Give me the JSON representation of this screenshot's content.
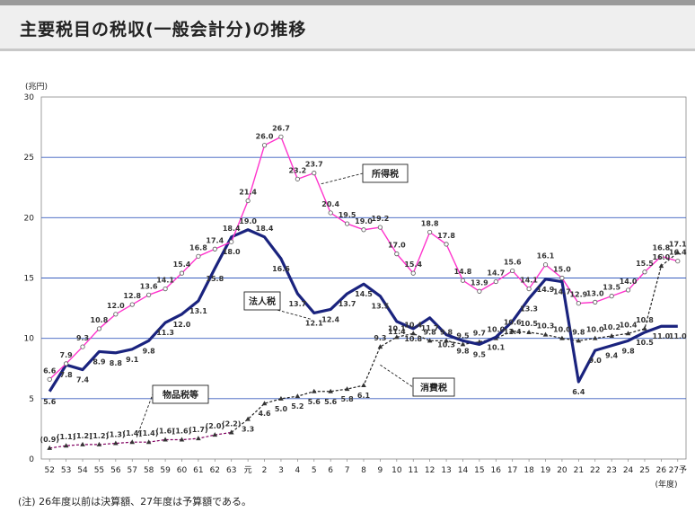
{
  "header": {
    "title": "主要税目の税収(一般会計分)の推移"
  },
  "note": "(注) 26年度以前は決算額、27年度は予算額である。",
  "chart_data": {
    "type": "line",
    "ylabel": "(兆円)",
    "xlabel": "(年度)",
    "ylim": [
      0,
      30
    ],
    "yticks": [
      0,
      5,
      10,
      15,
      20,
      25,
      30
    ],
    "grid": true,
    "categories": [
      "52",
      "53",
      "54",
      "55",
      "56",
      "57",
      "58",
      "59",
      "60",
      "61",
      "62",
      "63",
      "元",
      "2",
      "3",
      "4",
      "5",
      "6",
      "7",
      "8",
      "9",
      "10",
      "11",
      "12",
      "13",
      "14",
      "15",
      "16",
      "17",
      "18",
      "19",
      "20",
      "21",
      "22",
      "23",
      "24",
      "25",
      "26",
      "27予"
    ],
    "series": [
      {
        "name": "所得税",
        "color": "#ff33cc",
        "marker": "circle",
        "values": [
          6.6,
          7.9,
          9.3,
          10.8,
          12.0,
          12.8,
          13.6,
          14.1,
          15.4,
          16.8,
          17.4,
          18.0,
          21.4,
          26.0,
          26.7,
          23.2,
          23.7,
          20.4,
          19.5,
          19.0,
          19.2,
          17.0,
          15.4,
          18.8,
          17.8,
          14.8,
          13.9,
          14.7,
          15.6,
          14.1,
          16.1,
          15.0,
          12.9,
          13.0,
          13.5,
          14.0,
          15.5,
          16.8,
          16.4
        ],
        "labels": [
          "6.6",
          "7.9",
          "9.3",
          "10.8",
          "12.0",
          "12.8",
          "13.6",
          "14.1",
          "15.4",
          "16.8",
          "17.4",
          "18.0",
          "21.4",
          "26.0",
          "26.7",
          "23.2",
          "23.7",
          "20.4",
          "19.5",
          "19.0",
          "19.2",
          "17.0",
          "15.4",
          "18.8",
          "17.8",
          "14.8",
          "13.9",
          "14.7",
          "15.6",
          "14.1",
          "16.1",
          "15.0",
          "12.9",
          "13.0",
          "13.5",
          "14.0",
          "15.5",
          "16.8",
          "16.4"
        ]
      },
      {
        "name": "法人税",
        "color": "#1a237e",
        "marker": "none",
        "values": [
          5.6,
          7.8,
          7.4,
          8.9,
          8.8,
          9.1,
          9.8,
          11.3,
          12.0,
          13.1,
          15.8,
          18.4,
          19.0,
          18.4,
          16.6,
          13.7,
          12.1,
          12.4,
          13.7,
          14.5,
          13.5,
          11.4,
          10.8,
          11.7,
          10.3,
          9.8,
          9.5,
          10.1,
          11.4,
          13.3,
          14.9,
          14.7,
          6.4,
          9.0,
          9.4,
          9.8,
          10.5,
          11.0,
          11.0
        ],
        "labels": [
          "5.6",
          "7.8",
          "7.4",
          "8.9",
          "8.8",
          "9.1",
          "9.8",
          "11.3",
          "12.0",
          "13.1",
          "15.8",
          "18.4",
          "19.0",
          "18.4",
          "16.6",
          "13.7",
          "12.1",
          "12.4",
          "13.7",
          "14.5",
          "13.5",
          "11.4",
          "10.8",
          "11.7",
          "10.3",
          "9.8",
          "9.5",
          "10.1",
          "11.4",
          "13.3",
          "14.9",
          "14.7",
          "6.4",
          "9.0",
          "9.4",
          "9.8",
          "10.5",
          "11.0",
          "11.0"
        ]
      },
      {
        "name": "消費税",
        "color": "#222222",
        "marker": "triangle",
        "start_index": 11,
        "values": [
          null,
          null,
          null,
          null,
          null,
          null,
          null,
          null,
          null,
          null,
          null,
          2.2,
          3.3,
          4.6,
          5.0,
          5.2,
          5.6,
          5.6,
          5.8,
          6.1,
          9.3,
          10.1,
          10.4,
          9.8,
          9.8,
          9.5,
          9.7,
          10.0,
          10.6,
          10.5,
          10.3,
          10.0,
          9.8,
          10.0,
          10.2,
          10.4,
          10.8,
          16.0,
          17.1
        ],
        "labels": [
          null,
          null,
          null,
          null,
          null,
          null,
          null,
          null,
          null,
          null,
          null,
          null,
          "3.3",
          "4.6",
          "5.0",
          "5.2",
          "5.6",
          "5.6",
          "5.8",
          "6.1",
          "9.3",
          "10.1",
          "10.4",
          "9.8",
          "9.8",
          "9.5",
          "9.7",
          "10.0",
          "10.6",
          "10.5",
          "10.3",
          "10.0",
          "9.8",
          "10.0",
          "10.2",
          "10.4",
          "10.8",
          "16.0",
          "17.1"
        ]
      },
      {
        "name": "物品税等",
        "color": "#800060",
        "marker": "triangle",
        "values": [
          0.9,
          1.1,
          1.2,
          1.2,
          1.3,
          1.4,
          1.4,
          1.6,
          1.6,
          1.7,
          2.0,
          2.2,
          null,
          null,
          null,
          null,
          null,
          null,
          null,
          null,
          null,
          null,
          null,
          null,
          null,
          null,
          null,
          null,
          null,
          null,
          null,
          null,
          null,
          null,
          null,
          null,
          null,
          null,
          null
        ],
        "labels": [
          "(0.9)",
          "(1.1)",
          "(1.2)",
          "(1.2)",
          "(1.3)",
          "(1.4)",
          "(1.4)",
          "(1.6)",
          "(1.6)",
          "(1.7)",
          "(2.0)",
          "(2.2)",
          null,
          null,
          null,
          null,
          null,
          null,
          null,
          null,
          null,
          null,
          null,
          null,
          null,
          null,
          null,
          null,
          null,
          null,
          null,
          null,
          null,
          null,
          null,
          null,
          null,
          null,
          null
        ]
      }
    ],
    "callouts": [
      "所得税",
      "法人税",
      "消費税",
      "物品税等"
    ]
  }
}
